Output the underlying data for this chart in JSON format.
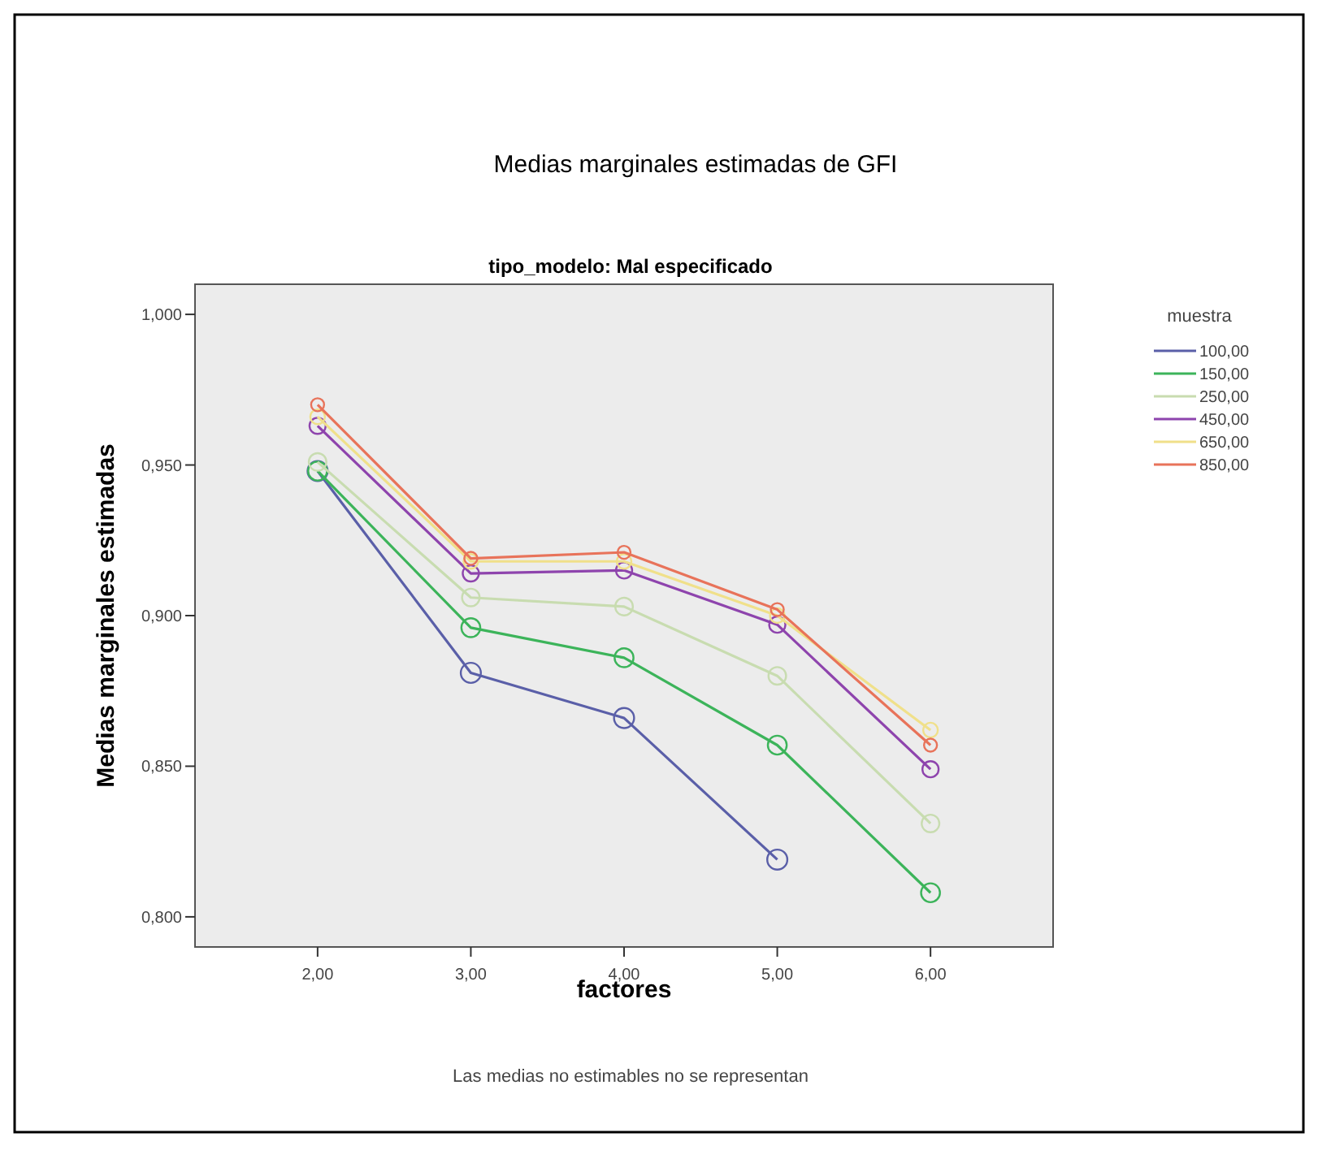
{
  "chart_data": {
    "type": "line",
    "title": "Medias marginales estimadas de GFI",
    "subtitle": "tipo_modelo: Mal especificado",
    "xlabel": "factores",
    "ylabel": "Medias marginales estimadas",
    "legend_title": "muestra",
    "annotations": [
      "Las medias no estimables no se representan"
    ],
    "x": [
      2,
      3,
      4,
      5,
      6
    ],
    "xlim": [
      1.2,
      6.8
    ],
    "xticks": [
      {
        "value": 2,
        "label": "2,00"
      },
      {
        "value": 3,
        "label": "3,00"
      },
      {
        "value": 4,
        "label": "4,00"
      },
      {
        "value": 5,
        "label": "5,00"
      },
      {
        "value": 6,
        "label": "6,00"
      }
    ],
    "ylim": [
      0.79,
      1.01
    ],
    "yticks": [
      {
        "value": 0.8,
        "label": "0,800"
      },
      {
        "value": 0.85,
        "label": "0,850"
      },
      {
        "value": 0.9,
        "label": "0,900"
      },
      {
        "value": 0.95,
        "label": "0,950"
      },
      {
        "value": 1,
        "label": "1,000"
      }
    ],
    "series": [
      {
        "name": "100,00",
        "color": "#5a5fa8",
        "values": [
          0.948,
          0.881,
          0.866,
          0.819,
          null
        ]
      },
      {
        "name": "150,00",
        "color": "#3cb45a",
        "values": [
          0.948,
          0.896,
          0.886,
          0.857,
          0.808
        ]
      },
      {
        "name": "250,00",
        "color": "#c8dcb0",
        "values": [
          0.951,
          0.906,
          0.903,
          0.88,
          0.831
        ]
      },
      {
        "name": "450,00",
        "color": "#8e44ad",
        "values": [
          0.963,
          0.914,
          0.915,
          0.897,
          0.849
        ]
      },
      {
        "name": "650,00",
        "color": "#f0e08a",
        "values": [
          0.966,
          0.918,
          0.918,
          0.9,
          0.862
        ]
      },
      {
        "name": "850,00",
        "color": "#e8735a",
        "values": [
          0.97,
          0.919,
          0.921,
          0.902,
          0.857
        ]
      }
    ],
    "marker": "circle",
    "legend": "right",
    "grid": false
  }
}
